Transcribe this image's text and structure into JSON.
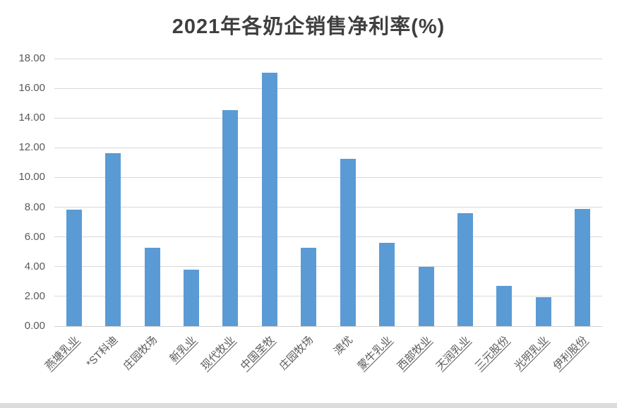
{
  "chart_data": {
    "type": "bar",
    "title": "2021年各奶企销售净利率(%)",
    "categories": [
      "燕塘乳业",
      "*ST科迪",
      "庄园牧场",
      "新乳业",
      "现代牧业",
      "中国圣牧",
      "庄园牧场",
      "澳优",
      "蒙牛乳业",
      "西部牧业",
      "天润乳业",
      "三元股份",
      "光明乳业",
      "伊利股份"
    ],
    "values": [
      7.85,
      11.65,
      5.25,
      3.8,
      14.55,
      17.05,
      5.25,
      11.25,
      5.6,
      4.0,
      7.6,
      2.7,
      1.95,
      7.9
    ],
    "underlined_categories": [
      true,
      false,
      false,
      true,
      true,
      true,
      false,
      false,
      true,
      true,
      true,
      true,
      true,
      true
    ],
    "y_tick_labels": [
      "0.00",
      "2.00",
      "4.00",
      "6.00",
      "8.00",
      "10.00",
      "12.00",
      "14.00",
      "16.00",
      "18.00"
    ],
    "ylim": [
      0,
      18
    ],
    "y_tick_step": 2,
    "grid": true,
    "legend": "none",
    "xlabel": "",
    "ylabel": "",
    "bar_color": "#5b9bd5",
    "gridline_color": "#d9d9d9",
    "axis_label_color": "#595959",
    "title_color": "#3f3f3f",
    "background_color": "#ffffff"
  }
}
